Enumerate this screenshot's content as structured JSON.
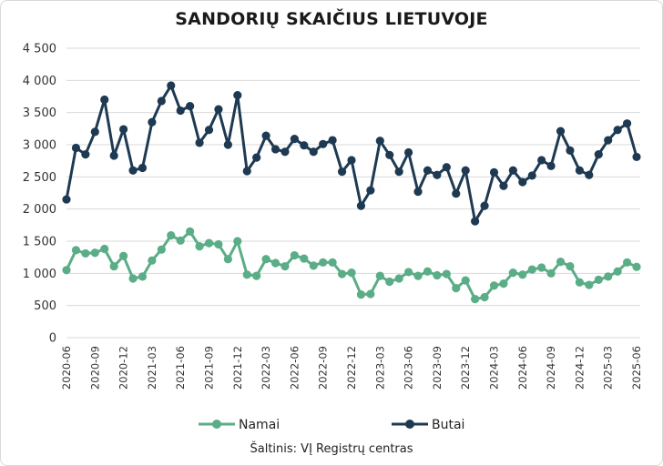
{
  "chart_data": {
    "type": "line",
    "title": "SANDORIŲ SKAIČIUS LIETUVOJE",
    "source": "Šaltinis: VĮ Registrų centras",
    "ylim": [
      0,
      4500
    ],
    "yticks": [
      "0",
      "500",
      "1 000",
      "1 500",
      "2 000",
      "2 500",
      "3 000",
      "3 500",
      "4 000",
      "4 500"
    ],
    "grid": true,
    "legend_position": "bottom",
    "x": [
      "2020-06",
      "2020-07",
      "2020-08",
      "2020-09",
      "2020-10",
      "2020-11",
      "2020-12",
      "2021-01",
      "2021-02",
      "2021-03",
      "2021-04",
      "2021-05",
      "2021-06",
      "2021-07",
      "2021-08",
      "2021-09",
      "2021-10",
      "2021-11",
      "2021-12",
      "2022-01",
      "2022-02",
      "2022-03",
      "2022-04",
      "2022-05",
      "2022-06",
      "2022-07",
      "2022-08",
      "2022-09",
      "2022-10",
      "2022-11",
      "2022-12",
      "2023-01",
      "2023-02",
      "2023-03",
      "2023-04",
      "2023-05",
      "2023-06",
      "2023-07",
      "2023-08",
      "2023-09",
      "2023-10",
      "2023-11",
      "2023-12",
      "2024-01",
      "2024-02",
      "2024-03",
      "2024-04",
      "2024-05",
      "2024-06",
      "2024-07",
      "2024-08",
      "2024-09",
      "2024-10",
      "2024-11",
      "2024-12",
      "2025-01",
      "2025-02",
      "2025-03",
      "2025-04",
      "2025-05",
      "2025-06"
    ],
    "x_tick_labels": [
      "2020-06",
      "2020-09",
      "2020-12",
      "2021-03",
      "2021-06",
      "2021-09",
      "2021-12",
      "2022-03",
      "2022-06",
      "2022-09",
      "2022-12",
      "2023-03",
      "2023-06",
      "2023-09",
      "2023-12",
      "2024-03",
      "2024-06",
      "2024-09",
      "2024-12",
      "2025-03",
      "2025-06"
    ],
    "series": [
      {
        "name": "Namai",
        "color": "#5aad86",
        "values": [
          1050,
          1360,
          1310,
          1320,
          1380,
          1110,
          1270,
          920,
          950,
          1200,
          1370,
          1590,
          1510,
          1650,
          1420,
          1470,
          1450,
          1220,
          1500,
          980,
          960,
          1220,
          1160,
          1110,
          1280,
          1230,
          1120,
          1170,
          1170,
          990,
          1010,
          670,
          680,
          960,
          870,
          920,
          1020,
          960,
          1030,
          970,
          990,
          770,
          890,
          600,
          630,
          810,
          840,
          1010,
          980,
          1060,
          1090,
          1000,
          1180,
          1110,
          860,
          820,
          900,
          950,
          1030,
          1170,
          1100
        ]
      },
      {
        "name": "Butai",
        "color": "#1e3a52",
        "values": [
          2150,
          2950,
          2850,
          3200,
          3700,
          2830,
          3240,
          2600,
          2640,
          3350,
          3680,
          3920,
          3530,
          3600,
          3030,
          3230,
          3550,
          3000,
          3770,
          2590,
          2800,
          3140,
          2930,
          2890,
          3090,
          2990,
          2890,
          3010,
          3070,
          2580,
          2760,
          2050,
          2290,
          3060,
          2840,
          2580,
          2880,
          2270,
          2600,
          2530,
          2650,
          2240,
          2600,
          1810,
          2050,
          2570,
          2360,
          2600,
          2420,
          2520,
          2760,
          2670,
          3210,
          2910,
          2600,
          2530,
          2850,
          3070,
          3230,
          3330,
          2810
        ]
      }
    ]
  }
}
